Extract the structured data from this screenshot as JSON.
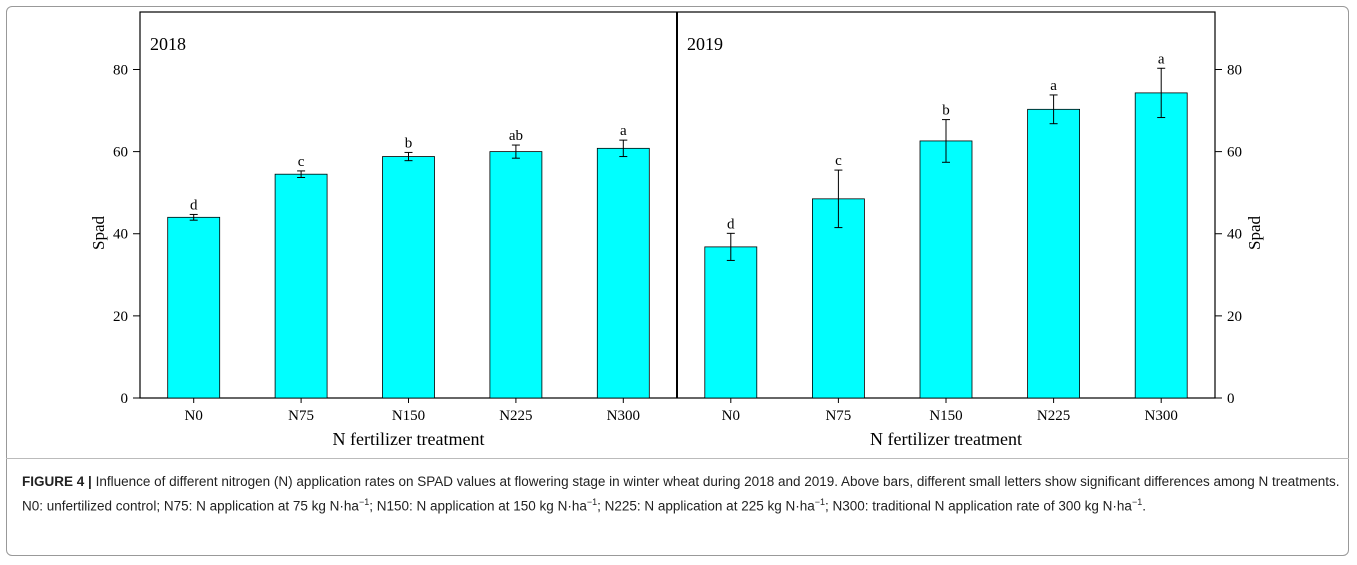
{
  "chart_data": [
    {
      "type": "bar",
      "title": "2018",
      "x_label": "N fertilizer treatment",
      "y_label": "Spad",
      "y_axis_side": "left",
      "categories": [
        "N0",
        "N75",
        "N150",
        "N225",
        "N300"
      ],
      "values": [
        44,
        54.5,
        58.8,
        60,
        60.8
      ],
      "errors": [
        0.7,
        0.8,
        1,
        1.6,
        2
      ],
      "annotations": [
        "d",
        "c",
        "b",
        "ab",
        "a"
      ],
      "color": "#00ffff",
      "ylim": [
        0,
        94
      ],
      "yticks": [
        0,
        20,
        40,
        60,
        80
      ]
    },
    {
      "type": "bar",
      "title": "2019",
      "x_label": "N fertilizer treatment",
      "y_label": "Spad",
      "y_axis_side": "right",
      "categories": [
        "N0",
        "N75",
        "N150",
        "N225",
        "N300"
      ],
      "values": [
        36.8,
        48.5,
        62.6,
        70.3,
        74.3
      ],
      "errors": [
        3.3,
        7,
        5.2,
        3.5,
        6
      ],
      "annotations": [
        "d",
        "c",
        "b",
        "a",
        "a"
      ],
      "color": "#00ffff",
      "ylim": [
        0,
        94
      ],
      "yticks": [
        0,
        20,
        40,
        60,
        80
      ]
    }
  ],
  "caption": {
    "label": "FIGURE 4 |",
    "parts": [
      "Influence of different nitrogen (N) application rates on SPAD values at flowering stage in winter wheat during 2018 and 2019. Above bars, different small letters show significant differences among N treatments. N0: unfertilized control; N75: N application at 75 kg N·ha",
      {
        "sup": "−1"
      },
      "; N150: N application at 150 kg N·ha",
      {
        "sup": "−1"
      },
      "; N225: N application at 225 kg N·ha",
      {
        "sup": "−1"
      },
      "; N300: traditional N application rate of 300 kg N·ha",
      {
        "sup": "−1"
      },
      "."
    ]
  }
}
